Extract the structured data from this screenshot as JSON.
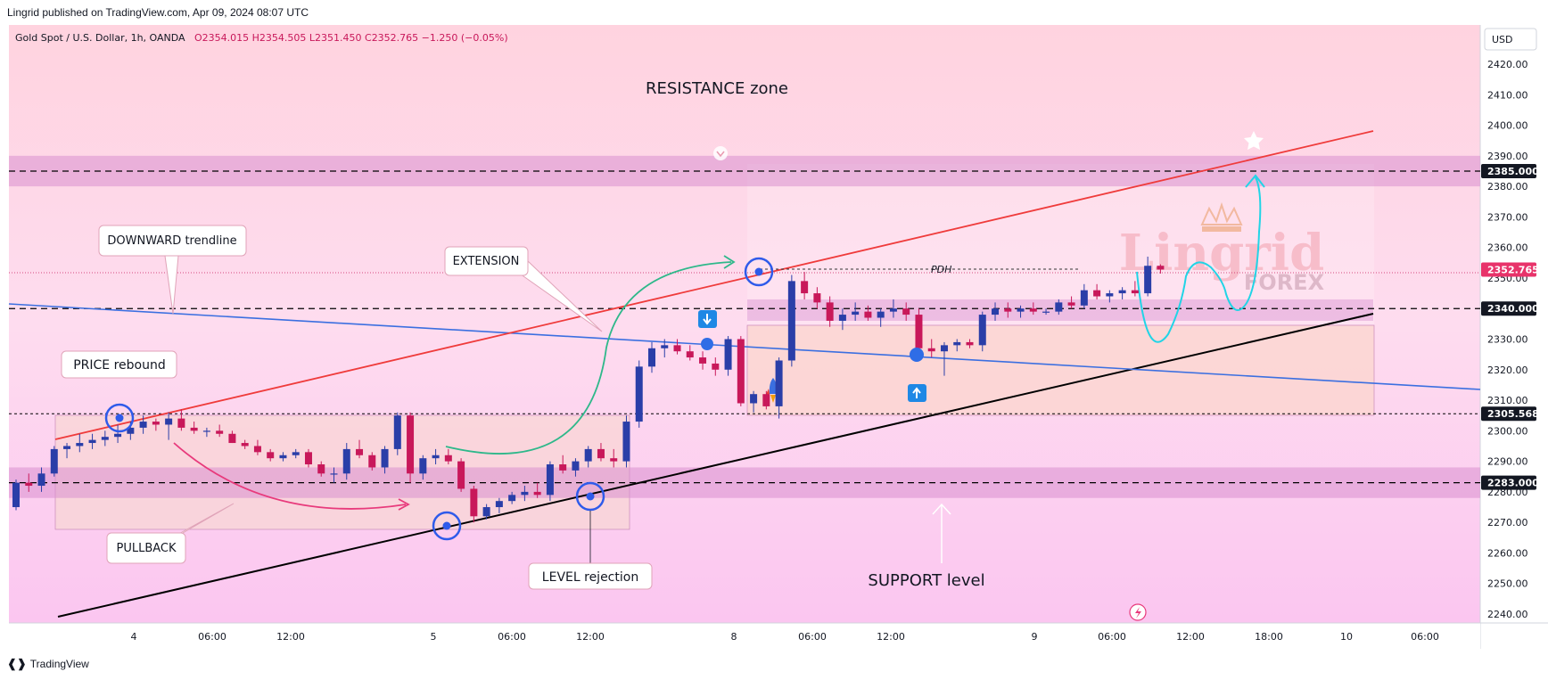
{
  "header": {
    "publisher_line": "Lingrid published on TradingView.com, Apr 09, 2024 08:07 UTC",
    "symbol": "Gold Spot / U.S. Dollar, 1h, OANDA",
    "ohlc": {
      "O": "2354.015",
      "H": "2354.505",
      "L": "2351.450",
      "C": "2352.765",
      "change": "−1.250 (−0.05%)"
    },
    "currency": "USD"
  },
  "footer": {
    "brand": "TradingView"
  },
  "chart_data": {
    "type": "candlestick",
    "y_axis": {
      "min": 2235,
      "max": 2430,
      "ticks": [
        2240,
        2250,
        2260,
        2270,
        2280,
        2290,
        2300,
        2310,
        2320,
        2330,
        2340,
        2350,
        2360,
        2370,
        2380,
        2390,
        2400,
        2410,
        2420
      ]
    },
    "x_axis": {
      "labels": [
        "4",
        "06:00",
        "12:00",
        "5",
        "06:00",
        "12:00",
        "8",
        "06:00",
        "12:00",
        "9",
        "06:00",
        "12:00",
        "18:00",
        "10",
        "06:00"
      ]
    },
    "price_labels": [
      {
        "value": 2385.0,
        "text": "2385.000",
        "style": "dark"
      },
      {
        "value": 2352.765,
        "text": "2352.765",
        "style": "red"
      },
      {
        "value": 2340.0,
        "text": "2340.000",
        "style": "dark"
      },
      {
        "value": 2305.568,
        "text": "2305.568",
        "style": "dark"
      },
      {
        "value": 2283.0,
        "text": "2283.000",
        "style": "dark"
      }
    ],
    "horizontal_levels": [
      2385.0,
      2340.0,
      2305.568,
      2283.0
    ],
    "zones": [
      {
        "name": "resistance",
        "from": 2380,
        "to": 2390
      },
      {
        "name": "mid",
        "from": 2336,
        "to": 2343
      },
      {
        "name": "support",
        "from": 2278,
        "to": 2288
      }
    ],
    "candles": [
      [
        2275,
        2284,
        2274,
        2283
      ],
      [
        2283,
        2286,
        2280,
        2282
      ],
      [
        2282,
        2288,
        2280,
        2286
      ],
      [
        2286,
        2295,
        2285,
        2294
      ],
      [
        2294,
        2296,
        2291,
        2295
      ],
      [
        2295,
        2299,
        2293,
        2296
      ],
      [
        2296,
        2299,
        2294,
        2297
      ],
      [
        2297,
        2300,
        2295,
        2298
      ],
      [
        2298,
        2302,
        2296,
        2299
      ],
      [
        2299,
        2303,
        2297,
        2301
      ],
      [
        2301,
        2305,
        2299,
        2303
      ],
      [
        2303,
        2304,
        2300,
        2302
      ],
      [
        2302,
        2306,
        2297,
        2304
      ],
      [
        2304,
        2307,
        2300,
        2301
      ],
      [
        2301,
        2303,
        2299,
        2300
      ],
      [
        2300,
        2301,
        2298,
        2300
      ],
      [
        2300,
        2302,
        2298,
        2299
      ],
      [
        2299,
        2300,
        2296,
        2296
      ],
      [
        2296,
        2297,
        2294,
        2295
      ],
      [
        2295,
        2297,
        2292,
        2293
      ],
      [
        2293,
        2294,
        2290,
        2291
      ],
      [
        2291,
        2293,
        2290,
        2292
      ],
      [
        2292,
        2294,
        2291,
        2293
      ],
      [
        2293,
        2294,
        2288,
        2289
      ],
      [
        2289,
        2290,
        2285,
        2286
      ],
      [
        2286,
        2288,
        2283,
        2286
      ],
      [
        2286,
        2296,
        2284,
        2294
      ],
      [
        2294,
        2297,
        2291,
        2292
      ],
      [
        2292,
        2293,
        2287,
        2288
      ],
      [
        2288,
        2295,
        2286,
        2294
      ],
      [
        2294,
        2306,
        2292,
        2305
      ],
      [
        2305,
        2306,
        2283,
        2286
      ],
      [
        2286,
        2292,
        2284,
        2291
      ],
      [
        2291,
        2294,
        2289,
        2292
      ],
      [
        2292,
        2294,
        2289,
        2290
      ],
      [
        2290,
        2291,
        2280,
        2281
      ],
      [
        2281,
        2282,
        2270,
        2272
      ],
      [
        2272,
        2276,
        2271,
        2275
      ],
      [
        2275,
        2278,
        2273,
        2277
      ],
      [
        2277,
        2280,
        2276,
        2279
      ],
      [
        2279,
        2282,
        2277,
        2280
      ],
      [
        2280,
        2283,
        2278,
        2279
      ],
      [
        2279,
        2290,
        2277,
        2289
      ],
      [
        2289,
        2292,
        2286,
        2287
      ],
      [
        2287,
        2291,
        2285,
        2290
      ],
      [
        2290,
        2295,
        2288,
        2294
      ],
      [
        2294,
        2296,
        2290,
        2291
      ],
      [
        2291,
        2294,
        2288,
        2290
      ],
      [
        2290,
        2305,
        2288,
        2303
      ],
      [
        2303,
        2323,
        2301,
        2321
      ],
      [
        2321,
        2329,
        2319,
        2327
      ],
      [
        2327,
        2330,
        2324,
        2328
      ],
      [
        2328,
        2330,
        2325,
        2326
      ],
      [
        2326,
        2328,
        2323,
        2324
      ],
      [
        2324,
        2326,
        2320,
        2322
      ],
      [
        2322,
        2324,
        2318,
        2320
      ],
      [
        2320,
        2331,
        2318,
        2330
      ],
      [
        2330,
        2331,
        2308,
        2309
      ],
      [
        2309,
        2313,
        2306,
        2312
      ],
      [
        2312,
        2313,
        2307,
        2308
      ],
      [
        2308,
        2324,
        2304,
        2323
      ],
      [
        2323,
        2351,
        2321,
        2349
      ],
      [
        2349,
        2352,
        2343,
        2345
      ],
      [
        2345,
        2347,
        2340,
        2342
      ],
      [
        2342,
        2344,
        2334,
        2336
      ],
      [
        2336,
        2340,
        2333,
        2338
      ],
      [
        2338,
        2342,
        2336,
        2339
      ],
      [
        2339,
        2341,
        2336,
        2337
      ],
      [
        2337,
        2340,
        2334,
        2339
      ],
      [
        2339,
        2343,
        2337,
        2340
      ],
      [
        2340,
        2342,
        2336,
        2338
      ],
      [
        2338,
        2340,
        2324,
        2327
      ],
      [
        2327,
        2330,
        2324,
        2326
      ],
      [
        2326,
        2329,
        2318,
        2328
      ],
      [
        2328,
        2330,
        2326,
        2329
      ],
      [
        2329,
        2330,
        2327,
        2328
      ],
      [
        2328,
        2339,
        2326,
        2338
      ],
      [
        2338,
        2342,
        2336,
        2340
      ],
      [
        2340,
        2342,
        2337,
        2339
      ],
      [
        2339,
        2341,
        2337,
        2340
      ],
      [
        2340,
        2342,
        2338,
        2339
      ],
      [
        2339,
        2340,
        2338,
        2339
      ],
      [
        2339,
        2343,
        2338,
        2342
      ],
      [
        2342,
        2344,
        2340,
        2341
      ],
      [
        2341,
        2348,
        2340,
        2346
      ],
      [
        2346,
        2348,
        2343,
        2344
      ],
      [
        2344,
        2346,
        2342,
        2345
      ],
      [
        2345,
        2347,
        2343,
        2346
      ],
      [
        2346,
        2349,
        2344,
        2345
      ],
      [
        2345,
        2357,
        2344,
        2354
      ],
      [
        2354,
        2354.5,
        2351.45,
        2352.765
      ]
    ]
  },
  "annotations": {
    "resistance_zone": "RESISTANCE zone",
    "downward_trendline": "DOWNWARD trendline",
    "extension": "EXTENSION",
    "price_rebound": "PRICE rebound",
    "pullback": "PULLBACK",
    "level_rejection": "LEVEL rejection",
    "support_level": "SUPPORT level",
    "pdh": "PDH",
    "watermark_main": "Lingrid",
    "watermark_sub": "FOREX"
  },
  "colors": {
    "bull": "#2a3ea8",
    "bear": "#c8185a",
    "red_line": "#ef3b3b",
    "blue_line": "#3b6fe0",
    "black_line": "#000000",
    "teal": "#2eb88a",
    "cyan": "#21d4e6",
    "magenta": "#e83a7c",
    "zone": "#d98fd0"
  }
}
